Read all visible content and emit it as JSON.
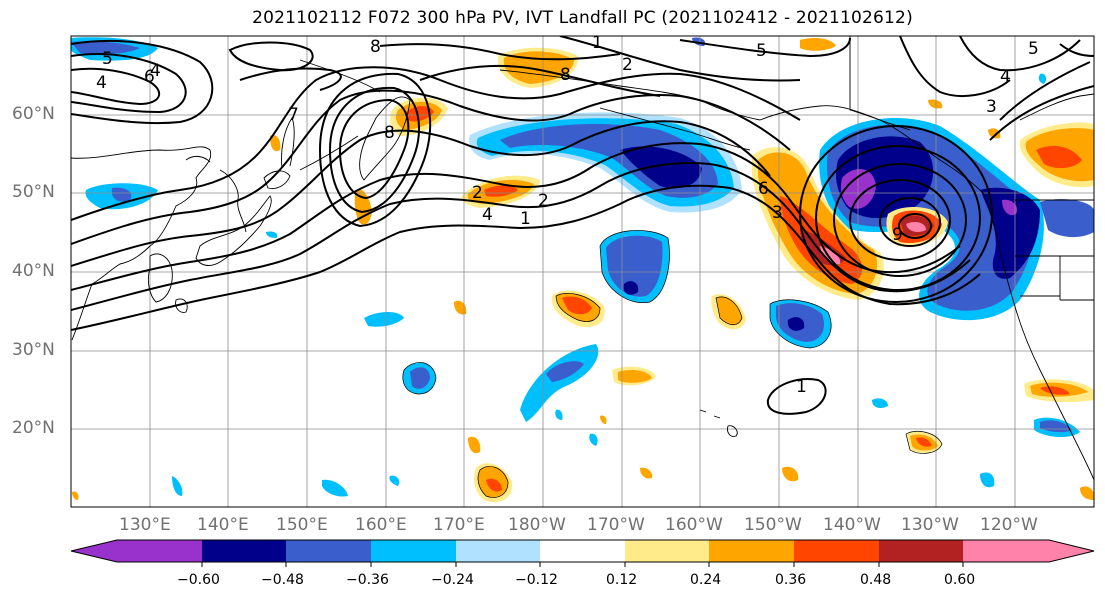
{
  "title": "2021102112 F072 300 hPa PV, IVT Landfall PC (2021102412 - 2021102612)",
  "lat_labels": [
    "60°N",
    "50°N",
    "40°N",
    "30°N",
    "20°N"
  ],
  "lon_labels": [
    "130°E",
    "140°E",
    "150°E",
    "160°E",
    "170°E",
    "180°W",
    "170°W",
    "160°W",
    "150°W",
    "140°W",
    "130°W",
    "120°W"
  ],
  "contour_labels": [
    "8",
    "5",
    "6",
    "4",
    "7",
    "1",
    "2",
    "8",
    "2",
    "4",
    "1",
    "5",
    "3",
    "4",
    "6",
    "2",
    "8",
    "9",
    "3",
    "5",
    "4",
    "1"
  ],
  "colorbar": {
    "ticks": [
      "−0.60",
      "−0.48",
      "−0.36",
      "−0.24",
      "−0.12",
      "0.12",
      "0.24",
      "0.36",
      "0.48",
      "0.60"
    ],
    "colors": [
      "#9932cc",
      "#00008b",
      "#3a5fcd",
      "#00bfff",
      "#b0e2ff",
      "#ffffff",
      "#ffeb8a",
      "#ffa500",
      "#ff4500",
      "#b22222",
      "#ff82ab"
    ]
  },
  "fill_colors": {
    "neg4": "#9932cc",
    "neg3": "#00008b",
    "neg2": "#3a5fcd",
    "neg1": "#00bfff",
    "neg0": "#b0e2ff",
    "pos0": "#ffeb8a",
    "pos1": "#ffa500",
    "pos2": "#ff4500",
    "pos3": "#b22222",
    "pos4": "#ff82ab"
  }
}
